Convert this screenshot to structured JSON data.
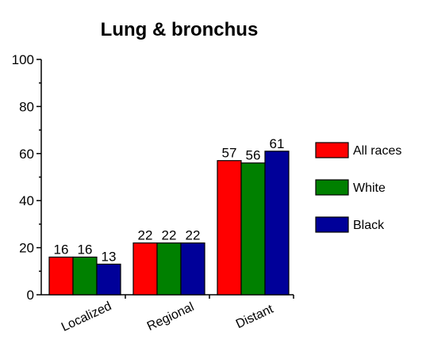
{
  "chart_data": {
    "type": "bar",
    "title": "Lung & bronchus",
    "xlabel": "",
    "ylabel": "",
    "categories": [
      "Localized",
      "Regional",
      "Distant"
    ],
    "series": [
      {
        "name": "All races",
        "values": [
          16,
          22,
          57
        ],
        "color": "#ff0000"
      },
      {
        "name": "White",
        "values": [
          16,
          22,
          56
        ],
        "color": "#008000"
      },
      {
        "name": "Black",
        "values": [
          13,
          22,
          61
        ],
        "color": "#000099"
      }
    ],
    "ylim": [
      0,
      100
    ],
    "yticks": [
      0,
      20,
      40,
      60,
      80,
      100
    ],
    "grid": false,
    "legend_position": "right"
  }
}
